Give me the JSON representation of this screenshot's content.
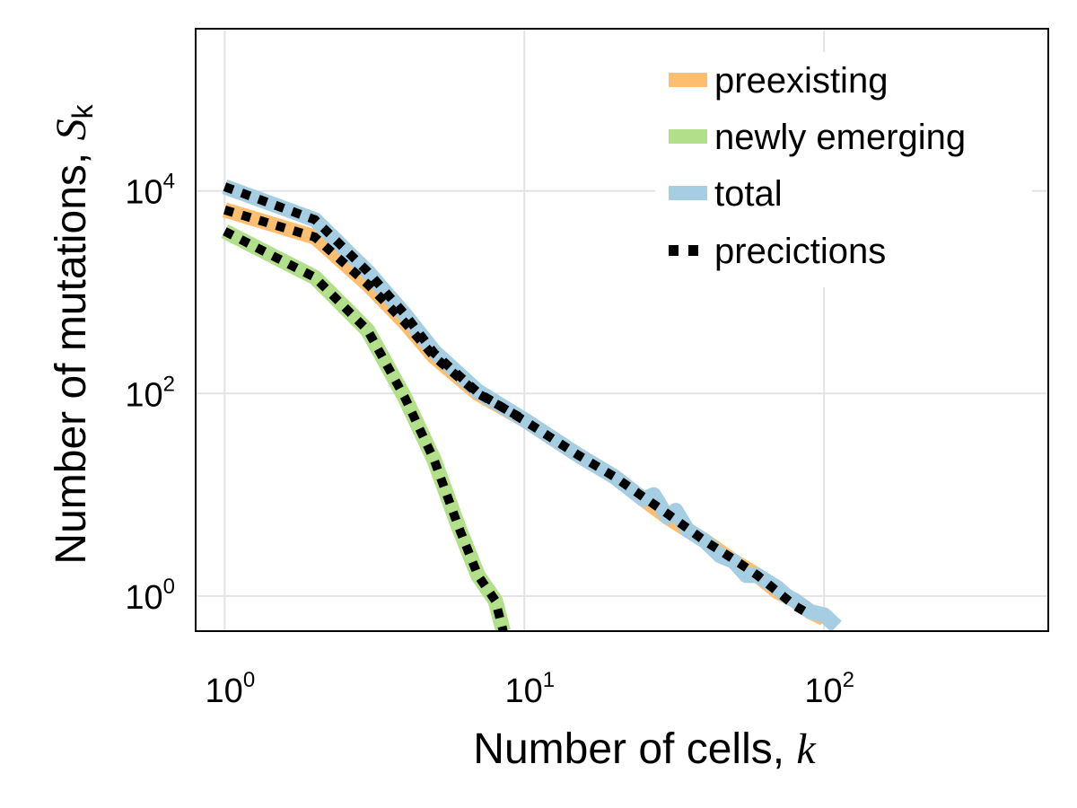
{
  "chart_data": {
    "type": "line",
    "xscale": "log",
    "yscale": "log",
    "xlim": [
      0.8,
      560
    ],
    "ylim": [
      0.45,
      400000
    ],
    "xticks": [
      {
        "base": "10",
        "exp": "0",
        "value": 1
      },
      {
        "base": "10",
        "exp": "1",
        "value": 10
      },
      {
        "base": "10",
        "exp": "2",
        "value": 100
      }
    ],
    "yticks": [
      {
        "base": "10",
        "exp": "0",
        "value": 1
      },
      {
        "base": "10",
        "exp": "2",
        "value": 100
      },
      {
        "base": "10",
        "exp": "4",
        "value": 10000
      }
    ],
    "xlabel": {
      "text": "Number of cells, ",
      "var": "k"
    },
    "ylabel": {
      "text": "Number of mutations, ",
      "var": "S",
      "sub": "k"
    },
    "grid": true,
    "legend_position": "top-right",
    "colors": {
      "preexisting": "#fdbf6f",
      "newly_emerging": "#b2df8a",
      "total": "#a6cee3",
      "predictions": "#000000"
    },
    "series": [
      {
        "name": "preexisting",
        "color": "#fdbf6f",
        "style": "solid",
        "x": [
          1,
          2,
          3,
          4,
          5,
          7,
          10,
          15,
          20,
          25,
          30,
          40,
          50,
          60,
          70,
          80,
          90,
          100
        ],
        "y": [
          6500,
          3500,
          1200,
          500,
          230,
          100,
          55,
          25,
          15,
          9,
          6,
          3.5,
          2.2,
          1.6,
          1.1,
          0.9,
          0.7,
          0.6
        ]
      },
      {
        "name": "newly emerging",
        "color": "#b2df8a",
        "style": "solid",
        "x": [
          1,
          2,
          3,
          4,
          5,
          6,
          7,
          8,
          8.5
        ],
        "y": [
          4000,
          1400,
          420,
          90,
          22,
          5,
          1.6,
          0.9,
          0.45
        ]
      },
      {
        "name": "total",
        "color": "#a6cee3",
        "style": "solid",
        "x": [
          1,
          2,
          3,
          4,
          5,
          7,
          10,
          15,
          20,
          25,
          27,
          30,
          32,
          35,
          40,
          45,
          50,
          55,
          60,
          70,
          75,
          80,
          90,
          100,
          110
        ],
        "y": [
          11000,
          5200,
          1600,
          600,
          260,
          105,
          55,
          25,
          15,
          9,
          10,
          6,
          7,
          4.5,
          3.5,
          2.5,
          2.2,
          1.6,
          1.6,
          1.2,
          1.0,
          0.9,
          0.7,
          0.65,
          0.5
        ]
      },
      {
        "name": "precictions",
        "color": "#000000",
        "style": "dotted",
        "curves": [
          {
            "x": [
              1,
              2,
              3,
              4,
              5,
              7,
              10,
              15,
              20,
              30,
              40,
              50,
              60,
              70,
              80,
              90
            ],
            "y": [
              11000,
              5200,
              1600,
              600,
              250,
              102,
              54,
              25,
              15,
              6.5,
              3.5,
              2.3,
              1.6,
              1.1,
              0.8,
              0.65
            ]
          },
          {
            "x": [
              1,
              2,
              3,
              4,
              5,
              7,
              10
            ],
            "y": [
              6500,
              3500,
              1200,
              500,
              230,
              100,
              55
            ]
          },
          {
            "x": [
              1,
              2,
              3,
              4,
              5,
              6,
              7,
              8,
              8.5
            ],
            "y": [
              4000,
              1400,
              420,
              90,
              22,
              5,
              1.6,
              0.9,
              0.45
            ]
          }
        ]
      }
    ]
  }
}
